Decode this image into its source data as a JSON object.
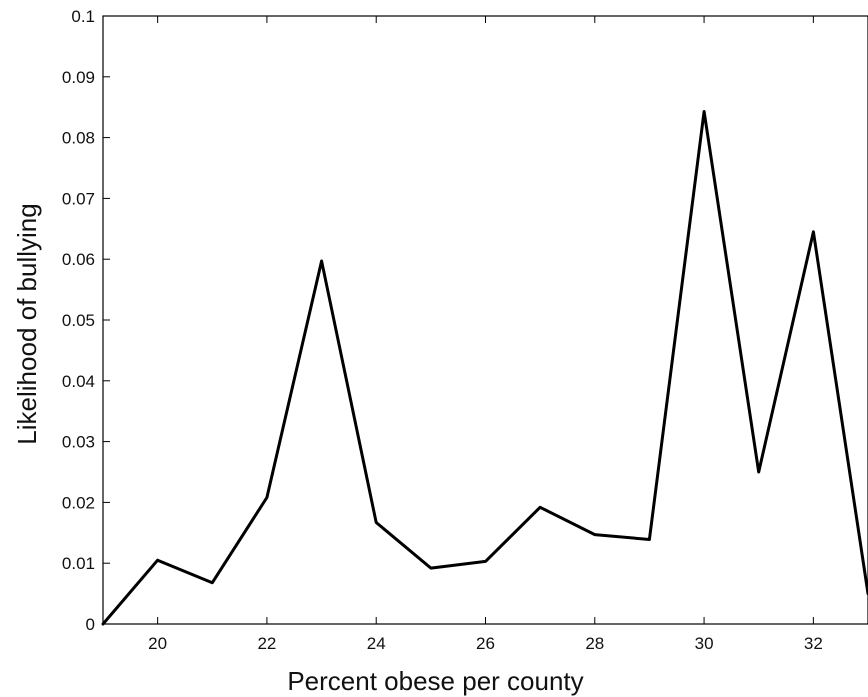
{
  "chart_data": {
    "type": "line",
    "title": "",
    "xlabel": "Percent obese per county",
    "ylabel": "Likelihood of bullying",
    "xlim": [
      19,
      33
    ],
    "ylim": [
      0,
      0.1
    ],
    "x_ticks": [
      20,
      22,
      24,
      26,
      28,
      30,
      32
    ],
    "x_tick_labels": [
      "20",
      "22",
      "24",
      "26",
      "28",
      "30",
      "32"
    ],
    "y_ticks": [
      0,
      0.01,
      0.02,
      0.03,
      0.04,
      0.05,
      0.06,
      0.07,
      0.08,
      0.09,
      0.1
    ],
    "y_tick_labels": [
      "0",
      "0.01",
      "0.02",
      "0.03",
      "0.04",
      "0.05",
      "0.06",
      "0.07",
      "0.08",
      "0.09",
      "0.1"
    ],
    "grid": false,
    "series": [
      {
        "x": [
          19,
          20,
          21,
          22,
          23,
          24,
          25,
          26,
          27,
          28,
          29,
          30,
          31,
          32,
          33
        ],
        "values": [
          0.0,
          0.0105,
          0.0068,
          0.0208,
          0.0597,
          0.0167,
          0.0092,
          0.0103,
          0.0192,
          0.0147,
          0.0139,
          0.0843,
          0.025,
          0.0645,
          0.005
        ],
        "color": "#000000"
      }
    ]
  }
}
